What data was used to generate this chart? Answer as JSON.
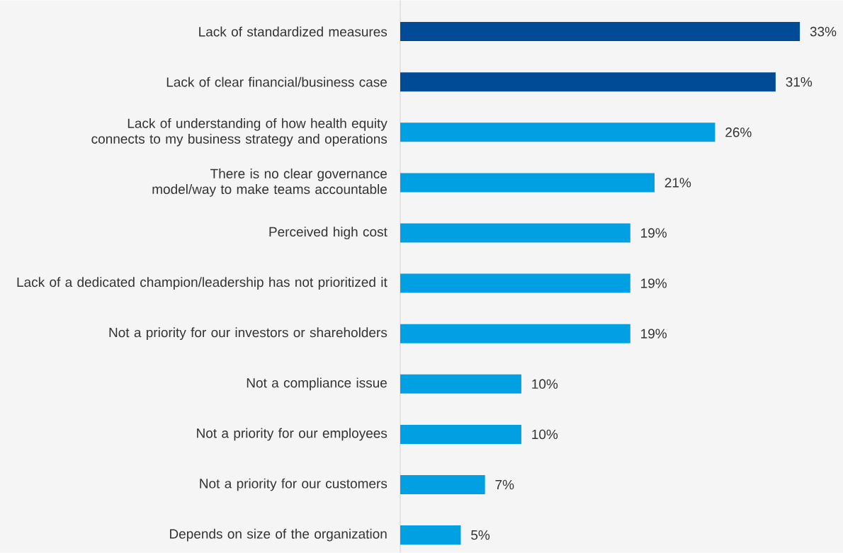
{
  "chart_data": {
    "type": "bar",
    "orientation": "horizontal",
    "categories": [
      "Lack of standardized measures",
      "Lack of clear financial/business case",
      "Lack of understanding of how health equity connects to my business strategy and operations",
      "There is no clear governance model/way to make teams accountable",
      "Perceived high cost",
      "Lack of a dedicated champion/leadership has not prioritized it",
      "Not a priority for our investors or shareholders",
      "Not a compliance issue",
      "Not a priority for our employees",
      "Not a priority for our customers",
      "Depends on size of the organization"
    ],
    "values": [
      33,
      31,
      26,
      21,
      19,
      19,
      19,
      10,
      10,
      7,
      5
    ],
    "value_labels": [
      "33%",
      "31%",
      "26%",
      "21%",
      "19%",
      "19%",
      "19%",
      "10%",
      "10%",
      "7%",
      "5%"
    ],
    "colors": [
      "#004b96",
      "#004b96",
      "#00a0e3",
      "#00a0e3",
      "#00a0e3",
      "#00a0e3",
      "#00a0e3",
      "#00a0e3",
      "#00a0e3",
      "#00a0e3",
      "#00a0e3"
    ]
  }
}
